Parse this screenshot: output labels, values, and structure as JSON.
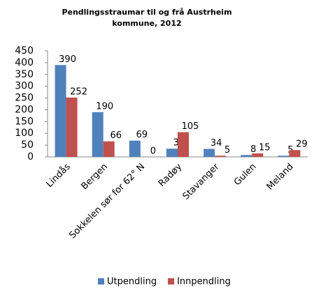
{
  "chart_data": {
    "type": "bar",
    "title": "Pendlingsstraumar til og frå Austrheim kommune, 2012",
    "categories": [
      "Lindås",
      "Bergen",
      "Sokkelen sør for 62° N",
      "Radøy",
      "Stavanger",
      "Gulen",
      "Meland"
    ],
    "series": [
      {
        "name": "Utpendling",
        "color": "#4f81bd",
        "values": [
          390,
          190,
          69,
          35,
          34,
          8,
          5
        ]
      },
      {
        "name": "Innpendling",
        "color": "#c0504d",
        "values": [
          252,
          66,
          0,
          105,
          5,
          15,
          29
        ]
      }
    ],
    "ylim": [
      0,
      450
    ],
    "yticks": [
      0,
      50,
      100,
      150,
      200,
      250,
      300,
      350,
      400,
      450
    ],
    "grid": false,
    "legend": "bottom"
  }
}
